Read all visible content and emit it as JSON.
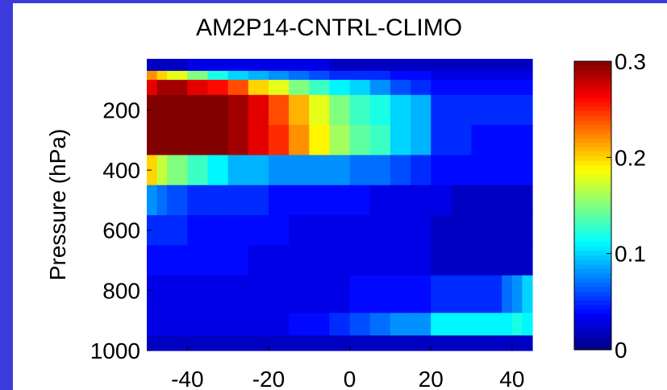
{
  "chart_data": {
    "type": "heatmap",
    "title": "AM2P14-CNTRL-CLIMO",
    "xlabel": "",
    "ylabel": "Pressure (hPa)",
    "x_ticks": [
      "-40",
      "-20",
      "0",
      "20",
      "40"
    ],
    "x_tick_values": [
      -40,
      -20,
      0,
      20,
      40
    ],
    "y_ticks": [
      "200",
      "400",
      "600",
      "800",
      "1000"
    ],
    "y_tick_values": [
      200,
      400,
      600,
      800,
      1000
    ],
    "xlim": [
      -50,
      45
    ],
    "ylim": [
      1000,
      30
    ],
    "colorbar": {
      "min": 0,
      "max": 0.3,
      "ticks": [
        "0",
        "0.1",
        "0.2",
        "0.3"
      ],
      "tick_values": [
        0,
        0.1,
        0.2,
        0.3
      ],
      "colormap": "jet"
    },
    "x_edges": [
      -50,
      -47.5,
      -45,
      -40,
      -35,
      -30,
      -25,
      -20,
      -15,
      -10,
      -5,
      0,
      5,
      10,
      15,
      20,
      25,
      30,
      35,
      37.5,
      40,
      42.5,
      45
    ],
    "p_edges": [
      30,
      70,
      100,
      150,
      250,
      350,
      450,
      550,
      650,
      750,
      875,
      950,
      1000
    ],
    "values": [
      [
        0.02,
        0.02,
        0.02,
        0.03,
        0.03,
        0.03,
        0.03,
        0.03,
        0.03,
        0.03,
        0.02,
        0.02,
        0.02,
        0.02,
        0.02,
        0.02,
        0.02,
        0.02,
        0.02,
        0.02,
        0.02,
        0.02
      ],
      [
        0.22,
        0.2,
        0.18,
        0.15,
        0.12,
        0.1,
        0.09,
        0.08,
        0.07,
        0.06,
        0.05,
        0.05,
        0.05,
        0.04,
        0.04,
        0.03,
        0.03,
        0.03,
        0.03,
        0.03,
        0.03,
        0.03
      ],
      [
        0.27,
        0.29,
        0.29,
        0.27,
        0.26,
        0.24,
        0.2,
        0.18,
        0.15,
        0.13,
        0.11,
        0.1,
        0.08,
        0.06,
        0.05,
        0.04,
        0.04,
        0.04,
        0.04,
        0.04,
        0.04,
        0.04
      ],
      [
        0.32,
        0.32,
        0.32,
        0.32,
        0.31,
        0.29,
        0.27,
        0.24,
        0.21,
        0.18,
        0.15,
        0.13,
        0.12,
        0.1,
        0.09,
        0.05,
        0.05,
        0.05,
        0.05,
        0.05,
        0.05,
        0.05
      ],
      [
        0.3,
        0.32,
        0.32,
        0.32,
        0.31,
        0.29,
        0.27,
        0.25,
        0.22,
        0.19,
        0.16,
        0.14,
        0.13,
        0.1,
        0.09,
        0.05,
        0.05,
        0.04,
        0.04,
        0.04,
        0.04,
        0.04
      ],
      [
        0.2,
        0.17,
        0.15,
        0.13,
        0.11,
        0.09,
        0.09,
        0.08,
        0.08,
        0.08,
        0.08,
        0.07,
        0.07,
        0.06,
        0.05,
        0.04,
        0.04,
        0.04,
        0.04,
        0.04,
        0.04,
        0.04
      ],
      [
        0.08,
        0.07,
        0.06,
        0.05,
        0.05,
        0.05,
        0.05,
        0.04,
        0.04,
        0.04,
        0.04,
        0.04,
        0.03,
        0.03,
        0.03,
        0.03,
        0.02,
        0.02,
        0.02,
        0.02,
        0.02,
        0.02
      ],
      [
        0.05,
        0.05,
        0.05,
        0.04,
        0.04,
        0.04,
        0.04,
        0.04,
        0.03,
        0.03,
        0.03,
        0.03,
        0.03,
        0.03,
        0.03,
        0.02,
        0.02,
        0.02,
        0.02,
        0.02,
        0.02,
        0.02
      ],
      [
        0.04,
        0.04,
        0.04,
        0.04,
        0.04,
        0.04,
        0.03,
        0.03,
        0.03,
        0.03,
        0.03,
        0.03,
        0.03,
        0.03,
        0.03,
        0.02,
        0.02,
        0.02,
        0.02,
        0.02,
        0.02,
        0.02
      ],
      [
        0.03,
        0.03,
        0.03,
        0.03,
        0.03,
        0.03,
        0.03,
        0.03,
        0.03,
        0.03,
        0.03,
        0.04,
        0.04,
        0.04,
        0.04,
        0.05,
        0.05,
        0.05,
        0.05,
        0.07,
        0.08,
        0.1
      ],
      [
        0.03,
        0.03,
        0.03,
        0.03,
        0.03,
        0.03,
        0.03,
        0.03,
        0.04,
        0.04,
        0.05,
        0.06,
        0.07,
        0.08,
        0.08,
        0.11,
        0.11,
        0.11,
        0.11,
        0.11,
        0.12,
        0.11
      ],
      [
        0.02,
        0.02,
        0.02,
        0.02,
        0.02,
        0.02,
        0.02,
        0.02,
        0.02,
        0.02,
        0.02,
        0.02,
        0.02,
        0.02,
        0.02,
        0.02,
        0.02,
        0.02,
        0.02,
        0.02,
        0.02,
        0.02
      ]
    ]
  }
}
